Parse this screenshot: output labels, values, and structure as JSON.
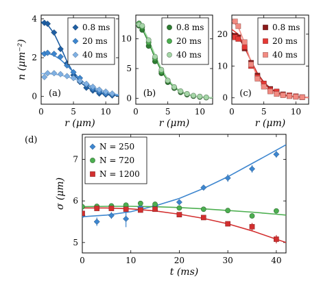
{
  "chart_data": [
    {
      "type": "scatter",
      "panel_label": "(a)",
      "xlabel": "r (μm)",
      "ylabel": "n (μm⁻²)",
      "xlim": [
        0,
        12
      ],
      "ylim": [
        -0.4,
        4.2
      ],
      "xticks": [
        0,
        5,
        10
      ],
      "yticks": [
        0,
        2,
        4
      ],
      "marker": "diamond",
      "legend_position": "top-right",
      "series": [
        {
          "name": "0.8 ms",
          "color": "#1f5fa3",
          "x": [
            0.5,
            1,
            2,
            3,
            4,
            5,
            6,
            7,
            8,
            9,
            10,
            11
          ],
          "y": [
            3.8,
            3.75,
            3.3,
            2.45,
            1.7,
            1.1,
            0.75,
            0.45,
            0.3,
            0.15,
            0.1,
            0.05
          ],
          "fit": [
            [
              0,
              3.85
            ],
            [
              1,
              3.7
            ],
            [
              2,
              3.25
            ],
            [
              3,
              2.55
            ],
            [
              4,
              1.8
            ],
            [
              5,
              1.2
            ],
            [
              6,
              0.75
            ],
            [
              7,
              0.48
            ],
            [
              8,
              0.3
            ],
            [
              9,
              0.18
            ],
            [
              10,
              0.1
            ],
            [
              11,
              0.06
            ],
            [
              12,
              0.03
            ]
          ]
        },
        {
          "name": "20 ms",
          "color": "#3d86cf",
          "x": [
            0.5,
            1,
            2,
            3,
            4,
            5,
            6,
            7,
            8,
            9,
            10,
            11
          ],
          "y": [
            2.2,
            2.25,
            2.2,
            2.05,
            1.6,
            1.25,
            0.95,
            0.6,
            0.4,
            0.25,
            0.15,
            0.1
          ],
          "fit": [
            [
              0,
              2.25
            ],
            [
              1,
              2.23
            ],
            [
              2,
              2.12
            ],
            [
              3,
              1.9
            ],
            [
              4,
              1.6
            ],
            [
              5,
              1.25
            ],
            [
              6,
              0.9
            ],
            [
              7,
              0.62
            ],
            [
              8,
              0.4
            ],
            [
              9,
              0.25
            ],
            [
              10,
              0.15
            ],
            [
              11,
              0.08
            ],
            [
              12,
              0.04
            ]
          ]
        },
        {
          "name": "40 ms",
          "color": "#7fb0e3",
          "x": [
            0.5,
            1,
            2,
            3,
            4,
            5,
            6,
            7,
            8,
            9,
            10,
            11
          ],
          "y": [
            1.0,
            1.2,
            1.2,
            1.15,
            1.05,
            0.95,
            0.8,
            0.65,
            0.5,
            0.35,
            0.25,
            0.15
          ],
          "fit": [
            [
              0,
              1.18
            ],
            [
              1,
              1.17
            ],
            [
              2,
              1.15
            ],
            [
              3,
              1.1
            ],
            [
              4,
              1.02
            ],
            [
              5,
              0.92
            ],
            [
              6,
              0.8
            ],
            [
              7,
              0.66
            ],
            [
              8,
              0.5
            ],
            [
              9,
              0.36
            ],
            [
              10,
              0.24
            ],
            [
              11,
              0.15
            ],
            [
              12,
              0.09
            ]
          ]
        }
      ]
    },
    {
      "type": "scatter",
      "panel_label": "(b)",
      "xlabel": "r (μm)",
      "xlim": [
        0,
        12
      ],
      "ylim": [
        -1,
        14
      ],
      "xticks": [
        0,
        5,
        10
      ],
      "yticks": [
        0,
        5,
        10
      ],
      "marker": "circle",
      "legend_position": "top-right",
      "series": [
        {
          "name": "0.8 ms",
          "color": "#2e7d32",
          "x": [
            0.5,
            1,
            2,
            3,
            4,
            5,
            6,
            7,
            8,
            9,
            10,
            11
          ],
          "y": [
            12.2,
            11.5,
            8.8,
            6.2,
            4.2,
            2.7,
            1.7,
            1.0,
            0.6,
            0.35,
            0.2,
            0.1
          ],
          "fit": [
            [
              0,
              12.6
            ],
            [
              1,
              11.7
            ],
            [
              2,
              9.4
            ],
            [
              3,
              6.8
            ],
            [
              4,
              4.6
            ],
            [
              5,
              2.95
            ],
            [
              6,
              1.8
            ],
            [
              7,
              1.1
            ],
            [
              8,
              0.65
            ],
            [
              9,
              0.38
            ],
            [
              10,
              0.22
            ],
            [
              11,
              0.12
            ],
            [
              12,
              0.07
            ]
          ]
        },
        {
          "name": "20 ms",
          "color": "#4caf50",
          "x": [
            0.5,
            1,
            2,
            3,
            4,
            5,
            6,
            7,
            8,
            9,
            10,
            11
          ],
          "y": [
            12.6,
            12.0,
            9.4,
            6.7,
            4.5,
            2.9,
            1.8,
            1.1,
            0.7,
            0.4,
            0.25,
            0.15
          ],
          "fit": [
            [
              0,
              12.7
            ],
            [
              1,
              11.9
            ],
            [
              2,
              9.6
            ],
            [
              3,
              7.0
            ],
            [
              4,
              4.8
            ],
            [
              5,
              3.1
            ],
            [
              6,
              1.9
            ],
            [
              7,
              1.15
            ],
            [
              8,
              0.68
            ],
            [
              9,
              0.4
            ],
            [
              10,
              0.23
            ],
            [
              11,
              0.13
            ],
            [
              12,
              0.07
            ]
          ]
        },
        {
          "name": "40 ms",
          "color": "#a5d6a7",
          "x": [
            0.5,
            1,
            2,
            3,
            4,
            5,
            6,
            7,
            8,
            9,
            10,
            11
          ],
          "y": [
            12.4,
            12.2,
            9.8,
            7.0,
            4.8,
            3.0,
            1.9,
            1.2,
            0.75,
            0.45,
            0.3,
            0.15
          ],
          "fit": [
            [
              0,
              12.5
            ],
            [
              1,
              12.0
            ],
            [
              2,
              9.9
            ],
            [
              3,
              7.3
            ],
            [
              4,
              5.0
            ],
            [
              5,
              3.2
            ],
            [
              6,
              2.0
            ],
            [
              7,
              1.2
            ],
            [
              8,
              0.72
            ],
            [
              9,
              0.42
            ],
            [
              10,
              0.25
            ],
            [
              11,
              0.14
            ],
            [
              12,
              0.08
            ]
          ]
        }
      ]
    },
    {
      "type": "scatter",
      "panel_label": "(c)",
      "xlabel": "r (μm)",
      "xlim": [
        0,
        12
      ],
      "ylim": [
        -2,
        26
      ],
      "xticks": [
        0,
        5,
        10
      ],
      "yticks": [
        0,
        10,
        20
      ],
      "marker": "square",
      "legend_position": "top-right",
      "series": [
        {
          "name": "0.8 ms",
          "color": "#8b1a1a",
          "x": [
            0.5,
            1,
            2,
            3,
            4,
            5,
            6,
            7,
            8,
            9,
            10,
            11
          ],
          "y": [
            19.5,
            19,
            15.5,
            11,
            7,
            4.5,
            2.8,
            1.8,
            1.1,
            0.6,
            0.4,
            0.2
          ],
          "fit": [
            [
              0,
              20.5
            ],
            [
              1,
              19.2
            ],
            [
              2,
              15.8
            ],
            [
              3,
              11.6
            ],
            [
              4,
              7.7
            ],
            [
              5,
              4.9
            ],
            [
              6,
              3.0
            ],
            [
              7,
              1.8
            ],
            [
              8,
              1.05
            ],
            [
              9,
              0.6
            ],
            [
              10,
              0.35
            ],
            [
              11,
              0.2
            ],
            [
              12,
              0.11
            ]
          ]
        },
        {
          "name": "20 ms",
          "color": "#e53935",
          "x": [
            0.5,
            1,
            2,
            3,
            4,
            5,
            6,
            7,
            8,
            9,
            10,
            11
          ],
          "y": [
            19,
            18.5,
            16,
            10,
            6.5,
            4.5,
            2.5,
            2,
            1,
            0.8,
            0.5,
            0.2
          ],
          "fit": [
            [
              0,
              21.5
            ],
            [
              1,
              20.0
            ],
            [
              2,
              16.2
            ],
            [
              3,
              11.5
            ],
            [
              4,
              7.5
            ],
            [
              5,
              4.6
            ],
            [
              6,
              2.7
            ],
            [
              7,
              1.6
            ],
            [
              8,
              0.9
            ],
            [
              9,
              0.5
            ],
            [
              10,
              0.28
            ],
            [
              11,
              0.15
            ],
            [
              12,
              0.08
            ]
          ]
        },
        {
          "name": "40 ms",
          "color": "#f28b82",
          "x": [
            0.5,
            1,
            2,
            3,
            4,
            5,
            6,
            7,
            8,
            9,
            10,
            11
          ],
          "y": [
            24,
            22.5,
            17.5,
            10.5,
            6,
            3.5,
            2,
            1.2,
            0.8,
            0.5,
            0.3,
            0.2
          ],
          "fit": [
            [
              0,
              24.2
            ],
            [
              1,
              22.3
            ],
            [
              2,
              17.2
            ],
            [
              3,
              11.3
            ],
            [
              4,
              6.6
            ],
            [
              5,
              3.7
            ],
            [
              6,
              2.0
            ],
            [
              7,
              1.1
            ],
            [
              8,
              0.6
            ],
            [
              9,
              0.33
            ],
            [
              10,
              0.18
            ],
            [
              11,
              0.1
            ],
            [
              12,
              0.05
            ]
          ]
        }
      ]
    },
    {
      "type": "scatter",
      "panel_label": "(d)",
      "xlabel": "t (ms)",
      "ylabel": "σ (μm)",
      "xlim": [
        0,
        42
      ],
      "ylim": [
        4.75,
        7.6
      ],
      "xticks": [
        0,
        10,
        20,
        30,
        40
      ],
      "yticks": [
        5,
        6,
        7
      ],
      "legend_position": "top-left",
      "series": [
        {
          "name": "N = 250",
          "marker": "diamond",
          "color": "#3d86cf",
          "x": [
            0,
            3,
            6,
            9,
            12,
            15,
            20,
            25,
            30,
            35,
            40
          ],
          "y": [
            5.65,
            5.5,
            5.65,
            5.57,
            5.85,
            5.88,
            5.97,
            6.32,
            6.55,
            6.77,
            7.12
          ],
          "err": [
            0.06,
            0.1,
            0.08,
            0.2,
            0.09,
            0.08,
            0.06,
            0.06,
            0.09,
            0.09,
            0.08
          ],
          "fit": [
            [
              0,
              5.62
            ],
            [
              5,
              5.66
            ],
            [
              10,
              5.74
            ],
            [
              15,
              5.88
            ],
            [
              20,
              6.06
            ],
            [
              25,
              6.3
            ],
            [
              30,
              6.58
            ],
            [
              35,
              6.9
            ],
            [
              40,
              7.22
            ],
            [
              42,
              7.35
            ]
          ]
        },
        {
          "name": "N = 720",
          "marker": "circle",
          "color": "#4caf50",
          "x": [
            0,
            3,
            6,
            9,
            12,
            15,
            20,
            25,
            30,
            35,
            40
          ],
          "y": [
            5.86,
            5.87,
            5.88,
            5.9,
            5.94,
            5.92,
            5.83,
            5.8,
            5.77,
            5.64,
            5.76
          ],
          "err": [
            0.06,
            0.05,
            0.05,
            0.05,
            0.05,
            0.06,
            0.05,
            0.06,
            0.04,
            0.05,
            0.06
          ],
          "fit": [
            [
              0,
              5.86
            ],
            [
              5,
              5.87
            ],
            [
              10,
              5.87
            ],
            [
              15,
              5.86
            ],
            [
              20,
              5.84
            ],
            [
              25,
              5.81
            ],
            [
              30,
              5.77
            ],
            [
              35,
              5.73
            ],
            [
              40,
              5.68
            ],
            [
              42,
              5.66
            ]
          ]
        },
        {
          "name": "N = 1200",
          "marker": "square",
          "color": "#d32f2f",
          "x": [
            0,
            3,
            6,
            9,
            12,
            15,
            20,
            25,
            30,
            35,
            40
          ],
          "y": [
            5.7,
            5.82,
            5.82,
            5.8,
            5.78,
            5.8,
            5.67,
            5.6,
            5.45,
            5.38,
            5.08
          ],
          "err": [
            0.06,
            0.05,
            0.05,
            0.05,
            0.05,
            0.06,
            0.05,
            0.05,
            0.05,
            0.09,
            0.1
          ],
          "fit": [
            [
              0,
              5.83
            ],
            [
              5,
              5.83
            ],
            [
              10,
              5.81
            ],
            [
              15,
              5.76
            ],
            [
              20,
              5.68
            ],
            [
              25,
              5.58
            ],
            [
              30,
              5.45
            ],
            [
              35,
              5.28
            ],
            [
              40,
              5.08
            ],
            [
              42,
              5.0
            ]
          ]
        }
      ]
    }
  ]
}
